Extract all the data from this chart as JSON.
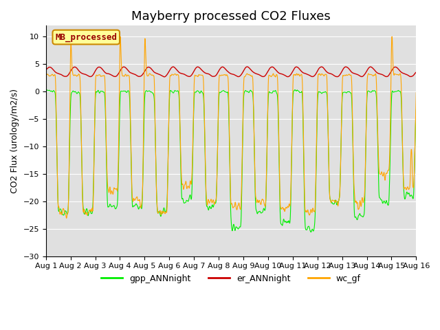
{
  "title": "Mayberry processed CO2 Fluxes",
  "ylabel": "CO2 Flux (urology/m2/s)",
  "ylim": [
    -30,
    12
  ],
  "yticks": [
    -30,
    -25,
    -20,
    -15,
    -10,
    -5,
    0,
    5,
    10
  ],
  "bg_color": "#e0e0e0",
  "fig_color": "#ffffff",
  "line_green": "#00ee00",
  "line_red": "#cc0000",
  "line_orange": "#ffa500",
  "legend_label": "MB_processed",
  "legend_fc": "#ffff99",
  "legend_ec": "#cc8800",
  "series_labels": [
    "gpp_ANNnight",
    "er_ANNnight",
    "wc_gf"
  ],
  "n_points": 1440,
  "xtick_labels": [
    "Aug 1",
    "Aug 2",
    "Aug 3",
    "Aug 4",
    "Aug 5",
    "Aug 6",
    "Aug 7",
    "Aug 8",
    "Aug 9",
    "Aug 10",
    "Aug 11",
    "Aug 12",
    "Aug 13",
    "Aug 14",
    "Aug 15",
    "Aug 16"
  ],
  "title_fontsize": 13,
  "axis_fontsize": 9,
  "tick_fontsize": 8
}
